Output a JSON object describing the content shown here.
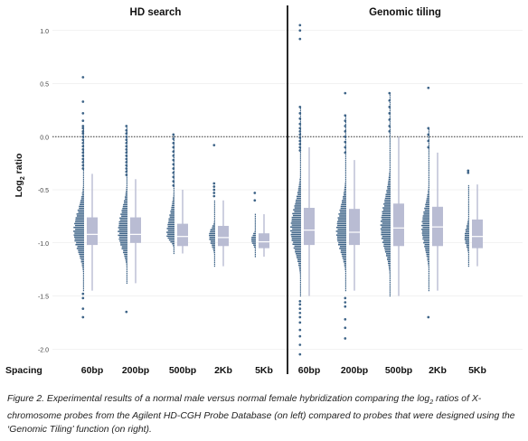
{
  "chart_data": {
    "type": "histogram-boxplot",
    "panels": [
      {
        "title": "HD search"
      },
      {
        "title": "Genomic tiling"
      }
    ],
    "ylabel": "Log2 ratio",
    "ylabel_main": "Log",
    "ylabel_sub": "2",
    "ylabel_tail": " ratio",
    "ylim": [
      -2.1,
      1.1
    ],
    "yticks": [
      1.0,
      0.5,
      0.0,
      -0.5,
      -1.0,
      -1.5,
      -2.0
    ],
    "ytick_labels": [
      "1.0",
      "0.5",
      "0.0",
      "-0.5",
      "-1.0",
      "-1.5",
      "-2.0"
    ],
    "reference_line": 0.0,
    "x_axis_title": "Spacing",
    "groups": [
      {
        "panel": 0,
        "label": "60bp",
        "q1": -1.02,
        "median": -0.92,
        "q3": -0.76,
        "whisker_low": -1.45,
        "whisker_high": -0.35,
        "hist_min": -1.45,
        "hist_max": 0.08,
        "hist_peak": -0.9,
        "hist_width": 1.0,
        "outliers": [
          0.56,
          0.33,
          0.22,
          0.15,
          0.1,
          0.08,
          0.05,
          0.03,
          0.0,
          -0.03,
          -0.06,
          -0.09,
          -0.12,
          -0.15,
          -0.18,
          -0.21,
          -0.24,
          -0.27,
          -0.3,
          -1.48,
          -1.52,
          -1.62,
          -1.7
        ]
      },
      {
        "panel": 0,
        "label": "200bp",
        "q1": -1.0,
        "median": -0.92,
        "q3": -0.76,
        "whisker_low": -1.38,
        "whisker_high": -0.4,
        "hist_min": -1.38,
        "hist_max": 0.1,
        "hist_peak": -0.9,
        "hist_width": 0.9,
        "outliers": [
          0.1,
          0.06,
          0.03,
          0.0,
          -0.03,
          -0.06,
          -0.09,
          -0.12,
          -0.15,
          -0.18,
          -0.21,
          -0.24,
          -0.27,
          -0.3,
          -0.33,
          -0.36,
          -1.65
        ]
      },
      {
        "panel": 0,
        "label": "500bp",
        "q1": -1.03,
        "median": -0.94,
        "q3": -0.82,
        "whisker_low": -1.1,
        "whisker_high": -0.5,
        "hist_min": -1.1,
        "hist_max": 0.02,
        "hist_peak": -0.93,
        "hist_width": 0.75,
        "outliers": [
          0.02,
          -0.02,
          -0.06,
          -0.1,
          -0.14,
          -0.18,
          -0.22,
          -0.26,
          -0.3,
          -0.34,
          -0.38,
          -0.42,
          -0.46
        ]
      },
      {
        "panel": 0,
        "label": "2Kb",
        "q1": -1.03,
        "median": -0.95,
        "q3": -0.84,
        "whisker_low": -1.22,
        "whisker_high": -0.6,
        "hist_min": -1.22,
        "hist_max": -0.6,
        "hist_peak": -0.93,
        "hist_width": 0.6,
        "outliers": [
          -0.08,
          -0.44,
          -0.47,
          -0.5,
          -0.53,
          -0.56
        ]
      },
      {
        "panel": 0,
        "label": "5Kb",
        "q1": -1.05,
        "median": -0.99,
        "q3": -0.91,
        "whisker_low": -1.13,
        "whisker_high": -0.73,
        "hist_min": -1.13,
        "hist_max": -0.73,
        "hist_peak": -0.97,
        "hist_width": 0.45,
        "outliers": [
          -0.53,
          -0.6
        ]
      },
      {
        "panel": 1,
        "label": "60bp",
        "q1": -1.02,
        "median": -0.88,
        "q3": -0.67,
        "whisker_low": -1.5,
        "whisker_high": -0.1,
        "hist_min": -1.5,
        "hist_max": 0.28,
        "hist_peak": -0.88,
        "hist_width": 1.0,
        "outliers": [
          1.05,
          1.0,
          0.92,
          0.28,
          0.22,
          0.17,
          0.12,
          0.08,
          0.05,
          0.02,
          -0.01,
          -0.04,
          -0.07,
          -0.1,
          -0.13,
          -1.55,
          -1.58,
          -1.62,
          -1.66,
          -1.7,
          -1.75,
          -1.82,
          -1.88,
          -1.96,
          -2.05
        ]
      },
      {
        "panel": 1,
        "label": "200bp",
        "q1": -1.02,
        "median": -0.9,
        "q3": -0.68,
        "whisker_low": -1.45,
        "whisker_high": -0.22,
        "hist_min": -1.45,
        "hist_max": 0.2,
        "hist_peak": -0.9,
        "hist_width": 0.95,
        "outliers": [
          0.41,
          0.2,
          0.15,
          0.1,
          0.05,
          0.0,
          -0.05,
          -0.1,
          -0.15,
          -1.52,
          -1.56,
          -1.6,
          -1.72,
          -1.8,
          -1.9
        ]
      },
      {
        "panel": 1,
        "label": "500bp",
        "q1": -1.03,
        "median": -0.86,
        "q3": -0.63,
        "whisker_low": -1.5,
        "whisker_high": 0.0,
        "hist_min": -1.5,
        "hist_max": 0.41,
        "hist_peak": -0.86,
        "hist_width": 0.95,
        "outliers": [
          0.41,
          0.34,
          0.28,
          0.22,
          0.16,
          0.1,
          0.05
        ]
      },
      {
        "panel": 1,
        "label": "2Kb",
        "q1": -1.03,
        "median": -0.85,
        "q3": -0.66,
        "whisker_low": -1.45,
        "whisker_high": -0.15,
        "hist_min": -1.45,
        "hist_max": 0.08,
        "hist_peak": -0.86,
        "hist_width": 0.75,
        "outliers": [
          0.46,
          0.08,
          0.02,
          -0.04,
          -0.1,
          -1.7
        ]
      },
      {
        "panel": 1,
        "label": "5Kb",
        "q1": -1.05,
        "median": -0.94,
        "q3": -0.78,
        "whisker_low": -1.22,
        "whisker_high": -0.45,
        "hist_min": -1.22,
        "hist_max": -0.45,
        "hist_peak": -0.95,
        "hist_width": 0.45,
        "outliers": [
          -0.32,
          -0.34
        ]
      }
    ],
    "colors": {
      "histogram": "#3d6387",
      "box": "#b9bcd3",
      "whisker": "#b9bcd3",
      "median": "#ffffff",
      "divider": "#111111",
      "reference": "#333333",
      "grid": "#e4e4e4",
      "tick_text": "#444444",
      "label_text": "#111111"
    }
  },
  "caption": {
    "part1": "Figure 2. Experimental results of a normal male versus normal female hybridization comparing the log",
    "sub": "2",
    "part2": " ratios of X-chromosome probes from the Agilent HD-CGH Probe Database (on left) compared to probes that were designed using the ‘Genomic Tiling’ function (on right)."
  }
}
